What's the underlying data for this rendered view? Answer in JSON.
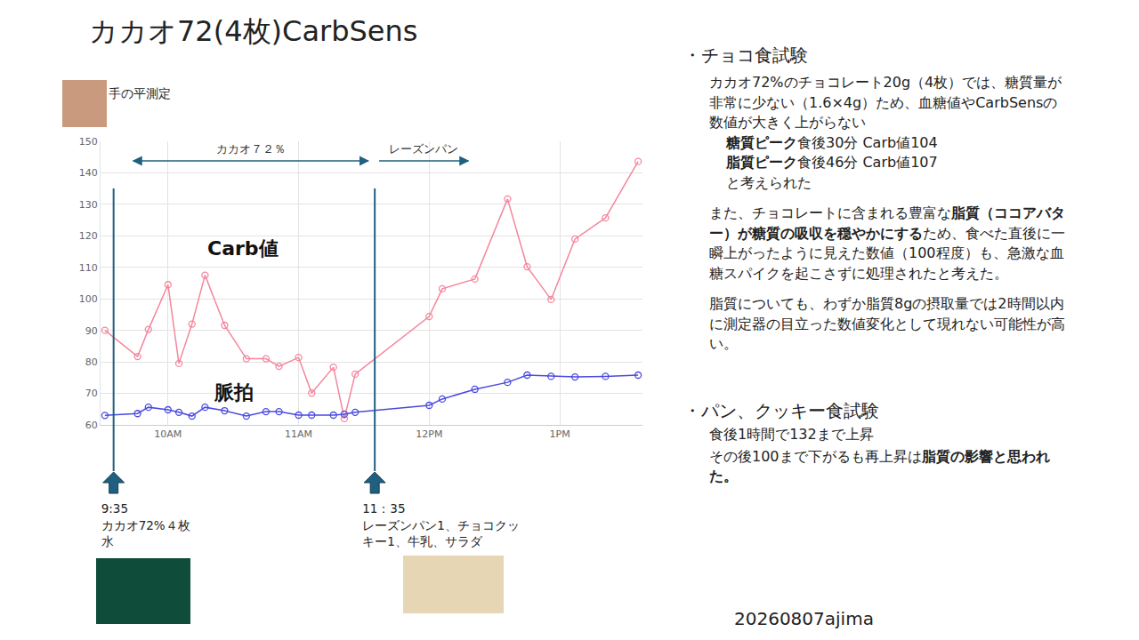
{
  "title": "カカオ72(4枚)CarbSens",
  "photo_caption": "手の平測定",
  "chart_data": {
    "type": "line",
    "x": [
      571,
      586,
      591,
      600,
      605,
      611,
      617,
      626,
      636,
      645,
      651,
      660,
      666,
      676,
      681,
      686,
      720,
      726,
      741,
      756,
      765,
      776,
      787,
      801,
      816
    ],
    "series": [
      {
        "name": "Carb値",
        "color": "#f4869c",
        "marker": "circle-open",
        "line_style": "solid",
        "values": [
          90,
          81.7,
          90.3,
          104.5,
          79.5,
          92,
          107.5,
          91.6,
          81,
          81,
          78.6,
          81.4,
          70.1,
          78.3,
          62,
          76.1,
          94.4,
          103.2,
          106.3,
          131.7,
          110.2,
          99.8,
          119,
          125.7,
          143.6
        ]
      },
      {
        "name": "脈拍",
        "color": "#4a4ae0",
        "marker": "circle-open",
        "line_style": "solid",
        "values": [
          63,
          63.6,
          65.6,
          64.8,
          64,
          62.8,
          65.6,
          64.5,
          62.8,
          64.2,
          64.2,
          63.1,
          63.1,
          63.1,
          63.4,
          64,
          66.2,
          68.2,
          71.3,
          73.5,
          75.8,
          75.4,
          75.2,
          75.4,
          75.8
        ]
      }
    ],
    "xlim": [
      569,
      818
    ],
    "xticks": [
      {
        "value": 600,
        "label": "10AM"
      },
      {
        "value": 660,
        "label": "11AM"
      },
      {
        "value": 720,
        "label": "12PM"
      },
      {
        "value": 780,
        "label": "1PM"
      }
    ],
    "ylim": [
      60,
      150
    ],
    "yticks": [
      60,
      70,
      80,
      90,
      100,
      110,
      120,
      130,
      140,
      150
    ],
    "grid": true
  },
  "timeline": {
    "spans": [
      {
        "text": "カカオ７２％",
        "x": [
          584,
          692
        ]
      },
      {
        "text": "レーズンパン",
        "x": [
          697,
          738
        ]
      }
    ],
    "events": [
      {
        "x": 575,
        "lines": [
          "9:35",
          "カカオ72%４枚",
          "水"
        ]
      },
      {
        "x": 695,
        "lines": [
          "11：35",
          "レーズンパン1、チョコクッキー1、牛乳、サラダ"
        ]
      }
    ]
  },
  "notes": [
    {
      "heading": "・チョコ食試験",
      "paragraphs": [
        {
          "runs": [
            {
              "text": "カカオ72%のチョコレート20g（4枚）では、糖質量が非常に少ない（1.6×4g）ため、血糖値やCarbSensの数値が大きく上がらない"
            }
          ],
          "sub": [
            [
              {
                "text": "糖質ピーク",
                "bold": true
              },
              {
                "text": "食後30分 Carb値104"
              }
            ],
            [
              {
                "text": "脂質ピーク",
                "bold": true
              },
              {
                "text": "食後46分 Carb値107"
              }
            ],
            [
              {
                "text": "と考えられた"
              }
            ]
          ]
        },
        {
          "runs": [
            {
              "text": "また、チョコレートに含まれる豊富な"
            },
            {
              "text": "脂質（ココアバター）が糖質の吸収を穏やかにする",
              "bold": true
            },
            {
              "text": "ため、食べた直後に一瞬上がったように見えた数値（100程度）も、急激な血糖スパイクを起こさずに処理されたと考えた。"
            }
          ]
        },
        {
          "runs": [
            {
              "text": "脂質についても、わずか脂質8gの摂取量では2時間以内に測定器の目立った数値変化として現れない可能性が高い。"
            }
          ]
        }
      ]
    },
    {
      "heading": "・パン、クッキー食試験",
      "paragraphs": [
        {
          "runs": [
            {
              "text": "食後1時間で132まで上昇"
            }
          ]
        },
        {
          "runs": [
            {
              "text": "その後100まで下がるも再上昇は"
            },
            {
              "text": "脂質の影響と思われた。",
              "bold": true
            }
          ]
        }
      ]
    }
  ],
  "footer": "20260807ajima"
}
